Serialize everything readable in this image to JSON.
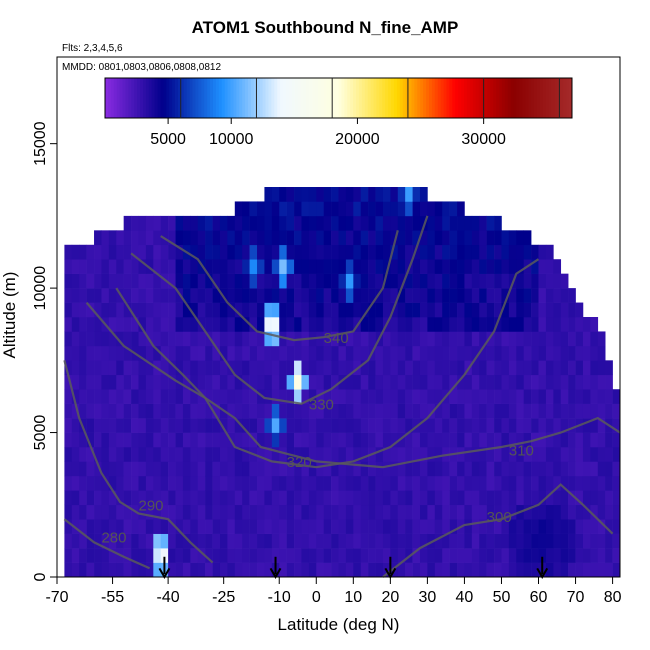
{
  "chart_data": {
    "type": "heatmap",
    "title": "ATOM1 Southbound N_fine_AMP",
    "flights_label": "Flts: 2,3,4,5,6",
    "mmdd_label": "MMDD: 0801,0803,0806,0808,0812",
    "xlabel": "Latitude (deg N)",
    "ylabel": "Altitude (m)",
    "xlim": [
      -70,
      82
    ],
    "ylim": [
      0,
      18000
    ],
    "x_ticks": [
      -70,
      -55,
      -40,
      -25,
      -10,
      0,
      10,
      20,
      30,
      40,
      50,
      60,
      70,
      80
    ],
    "y_ticks": [
      0,
      5000,
      10000,
      15000
    ],
    "colorbar": {
      "min": 0,
      "max": 37000,
      "ticks": [
        5000,
        10000,
        20000,
        30000
      ],
      "colors": [
        "#8a2be2",
        "#00008b",
        "#1e90ff",
        "#f0f8ff",
        "#ffffe0",
        "#ffd700",
        "#ff0000",
        "#8b0000",
        "#a52a2a"
      ]
    },
    "grid": {
      "lat_step": 2,
      "alt_step": 500,
      "top_profile": [
        [
          -68,
          11000
        ],
        [
          -60,
          11500
        ],
        [
          -52,
          12000
        ],
        [
          -36,
          12500
        ],
        [
          -22,
          12500
        ],
        [
          -14,
          13000
        ],
        [
          0,
          13500
        ],
        [
          20,
          13500
        ],
        [
          30,
          13000
        ],
        [
          40,
          12500
        ],
        [
          50,
          12000
        ],
        [
          58,
          11500
        ],
        [
          64,
          11000
        ],
        [
          68,
          10000
        ],
        [
          72,
          9000
        ],
        [
          76,
          8500
        ],
        [
          78,
          8000
        ],
        [
          80,
          7000
        ],
        [
          82,
          6000
        ]
      ],
      "hotspots": [
        {
          "lat": -13,
          "alt": 8500,
          "value": 16000
        },
        {
          "lat": -6,
          "alt": 6500,
          "value": 17000
        },
        {
          "lat": -10,
          "alt": 10500,
          "value": 11000
        },
        {
          "lat": -18,
          "alt": 10500,
          "value": 9000
        },
        {
          "lat": 8,
          "alt": 10000,
          "value": 9000
        },
        {
          "lat": 24,
          "alt": 13000,
          "value": 9000
        },
        {
          "lat": -43,
          "alt": 500,
          "value": 16000
        },
        {
          "lat": -12,
          "alt": 5000,
          "value": 9000
        }
      ],
      "dark_regions": [
        {
          "lat": 10,
          "alt": 10000,
          "value": 4200
        },
        {
          "lat": 35,
          "alt": 11500,
          "value": 3800
        },
        {
          "lat": 60,
          "alt": 1000,
          "value": 4000
        }
      ]
    },
    "contours": [
      {
        "label": "280",
        "points": [
          [
            -68,
            2000
          ],
          [
            -60,
            1200
          ],
          [
            -52,
            700
          ],
          [
            -45,
            300
          ]
        ],
        "label_at": [
          -58,
          1200
        ]
      },
      {
        "label": "290",
        "points": [
          [
            -68,
            7500
          ],
          [
            -64,
            5500
          ],
          [
            -58,
            3600
          ],
          [
            -53,
            2600
          ],
          [
            -48,
            2200
          ],
          [
            -40,
            2000
          ],
          [
            -34,
            1200
          ],
          [
            -28,
            500
          ]
        ],
        "label_at": [
          -48,
          2300
        ]
      },
      {
        "label": "300",
        "points": [
          [
            18,
            0
          ],
          [
            28,
            1000
          ],
          [
            40,
            1800
          ],
          [
            50,
            2000
          ],
          [
            60,
            2500
          ],
          [
            66,
            3200
          ],
          [
            72,
            2500
          ],
          [
            80,
            1500
          ]
        ],
        "label_at": [
          46,
          1900
        ]
      },
      {
        "label": "310",
        "points": [
          [
            -62,
            9500
          ],
          [
            -52,
            8000
          ],
          [
            -38,
            6800
          ],
          [
            -30,
            6200
          ],
          [
            -22,
            5500
          ],
          [
            -15,
            4500
          ],
          [
            0,
            4000
          ],
          [
            18,
            3800
          ],
          [
            34,
            4200
          ],
          [
            50,
            4500
          ],
          [
            58,
            4700
          ],
          [
            66,
            5000
          ],
          [
            76,
            5500
          ],
          [
            82,
            5000
          ]
        ],
        "label_at": [
          52,
          4200
        ]
      },
      {
        "label": "320",
        "points": [
          [
            -54,
            10000
          ],
          [
            -44,
            8000
          ],
          [
            -36,
            7000
          ],
          [
            -30,
            6200
          ],
          [
            -22,
            4500
          ],
          [
            -12,
            4000
          ],
          [
            0,
            3800
          ],
          [
            10,
            4000
          ],
          [
            20,
            4500
          ],
          [
            30,
            5500
          ],
          [
            40,
            7000
          ],
          [
            48,
            8500
          ],
          [
            54,
            10500
          ],
          [
            60,
            11000
          ]
        ],
        "label_at": [
          -8,
          3800
        ]
      },
      {
        "label": "330",
        "points": [
          [
            -50,
            11200
          ],
          [
            -38,
            10000
          ],
          [
            -30,
            8500
          ],
          [
            -22,
            7000
          ],
          [
            -14,
            6200
          ],
          [
            -4,
            6000
          ],
          [
            4,
            6500
          ],
          [
            14,
            7500
          ],
          [
            20,
            9000
          ],
          [
            26,
            11000
          ],
          [
            30,
            12500
          ]
        ],
        "label_at": [
          -2,
          5800
        ]
      },
      {
        "label": "340",
        "points": [
          [
            -42,
            11800
          ],
          [
            -32,
            11000
          ],
          [
            -24,
            9500
          ],
          [
            -16,
            8500
          ],
          [
            -6,
            8200
          ],
          [
            2,
            8300
          ],
          [
            10,
            8500
          ],
          [
            18,
            10000
          ],
          [
            22,
            12000
          ]
        ],
        "label_at": [
          2,
          8100
        ]
      }
    ],
    "arrows_lat": [
      -41,
      -11,
      20,
      61
    ]
  }
}
